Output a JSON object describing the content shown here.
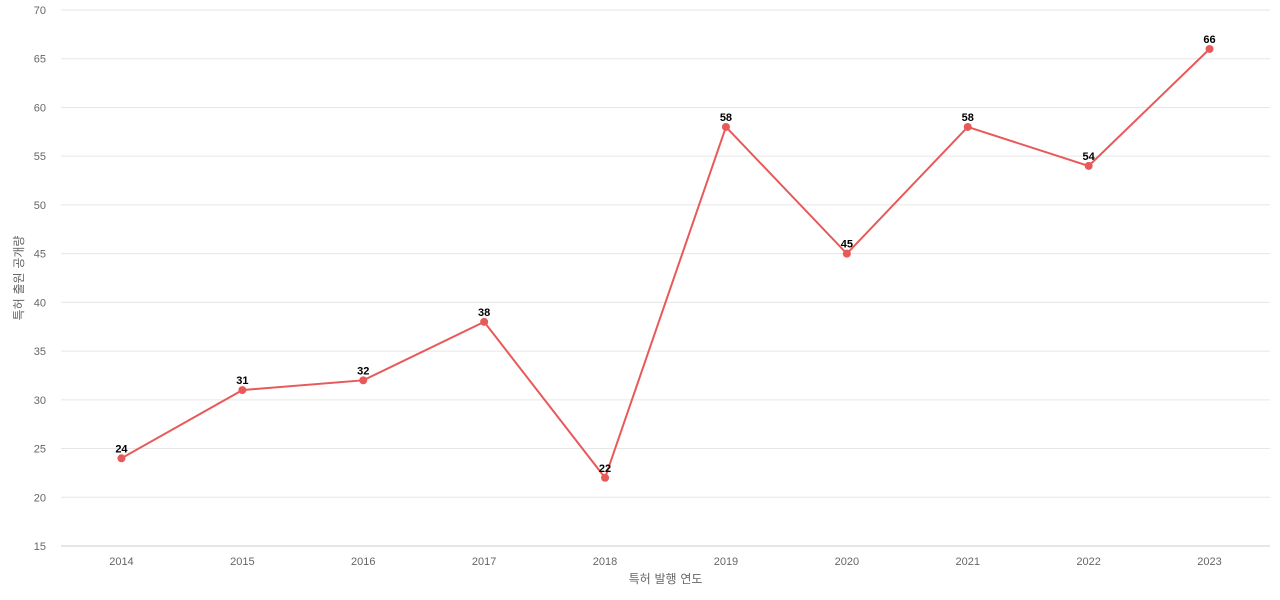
{
  "chart_data": {
    "type": "line",
    "title": "",
    "xlabel": "특허 발행 연도",
    "ylabel": "특허 출원 공개량",
    "x": [
      "2014",
      "2015",
      "2016",
      "2017",
      "2018",
      "2019",
      "2020",
      "2021",
      "2022",
      "2023"
    ],
    "series": [
      {
        "values": [
          24,
          31,
          32,
          38,
          22,
          58,
          45,
          58,
          54,
          66
        ]
      }
    ],
    "ylim": [
      15,
      70
    ],
    "yticks": [
      15,
      20,
      25,
      30,
      35,
      40,
      45,
      50,
      55,
      60,
      65,
      70
    ],
    "grid": true,
    "legend": "none",
    "line_color": "#e8595a",
    "data_labels": true
  }
}
